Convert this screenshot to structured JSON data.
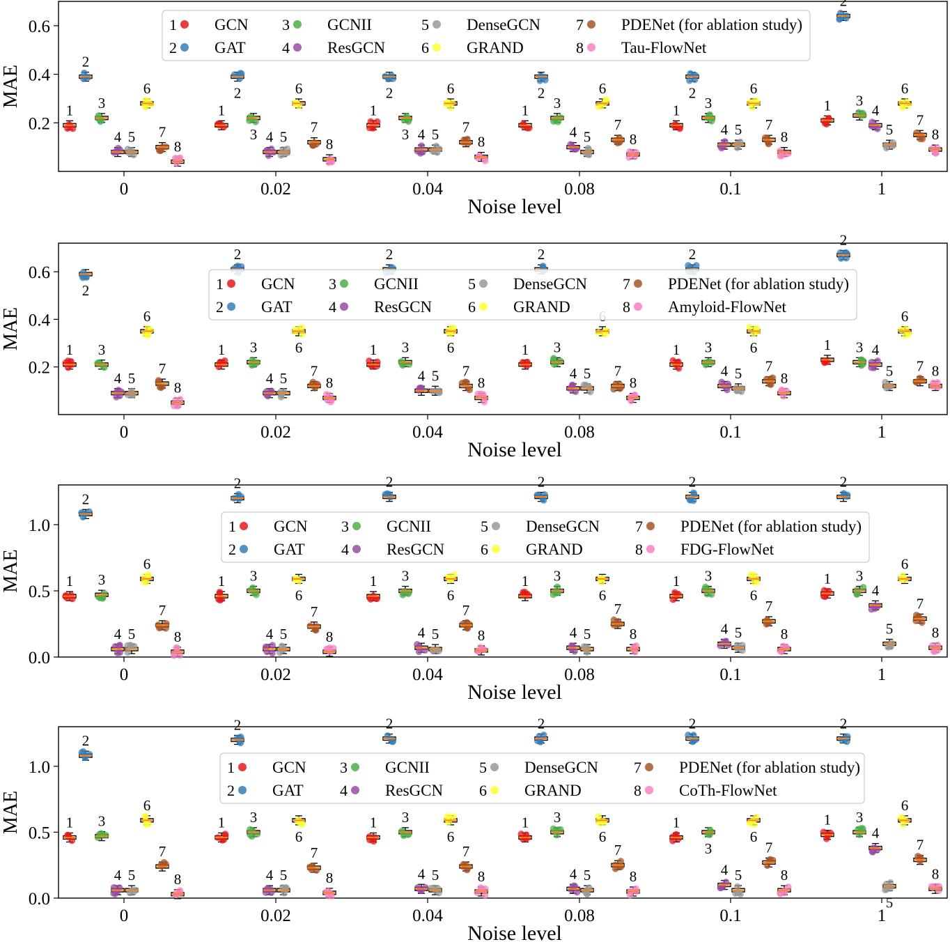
{
  "figure": {
    "xlabel": "Noise level",
    "ylabel": "MAE"
  },
  "colors": {
    "GCN": "#e41a1c",
    "GAT": "#377eb8",
    "GCNII": "#4daf4a",
    "ResGCN": "#984ea3",
    "DenseGCN": "#999999",
    "GRAND": "#ffff33",
    "PDENet": "#a65628",
    "FlowNet": "#f781bf",
    "median": "#ff7f0e"
  },
  "chart_data": [
    {
      "type": "box",
      "xlabel": "Noise level",
      "ylabel": "MAE",
      "categories": [
        "0",
        "0.02",
        "0.04",
        "0.08",
        "0.1",
        "1"
      ],
      "ylim": [
        0.0,
        0.7
      ],
      "yticks": [
        0.2,
        0.4,
        0.6
      ],
      "legend": [
        "GCN",
        "GAT",
        "GCNII",
        "ResGCN",
        "DenseGCN",
        "GRAND",
        "PDENet (for ablation study)",
        "Tau-FlowNet"
      ],
      "series": [
        {
          "num": "1",
          "name": "GCN",
          "values": [
            0.19,
            0.19,
            0.19,
            0.19,
            0.19,
            0.21
          ]
        },
        {
          "num": "2",
          "name": "GAT",
          "values": [
            0.39,
            0.39,
            0.39,
            0.39,
            0.39,
            0.64
          ]
        },
        {
          "num": "3",
          "name": "GCNII",
          "values": [
            0.22,
            0.22,
            0.22,
            0.22,
            0.22,
            0.23
          ]
        },
        {
          "num": "4",
          "name": "ResGCN",
          "values": [
            0.08,
            0.08,
            0.09,
            0.1,
            0.11,
            0.19
          ]
        },
        {
          "num": "5",
          "name": "DenseGCN",
          "values": [
            0.08,
            0.08,
            0.09,
            0.08,
            0.11,
            0.11
          ]
        },
        {
          "num": "6",
          "name": "GRAND",
          "values": [
            0.28,
            0.28,
            0.28,
            0.28,
            0.28,
            0.28
          ]
        },
        {
          "num": "7",
          "name": "PDENet (for ablation study)",
          "values": [
            0.1,
            0.12,
            0.12,
            0.13,
            0.13,
            0.15
          ]
        },
        {
          "num": "8",
          "name": "Tau-FlowNet",
          "values": [
            0.04,
            0.05,
            0.06,
            0.07,
            0.08,
            0.09
          ]
        }
      ]
    },
    {
      "type": "box",
      "xlabel": "Noise level",
      "ylabel": "MAE",
      "categories": [
        "0",
        "0.02",
        "0.04",
        "0.08",
        "0.1",
        "1"
      ],
      "ylim": [
        0.0,
        0.72
      ],
      "yticks": [
        0.2,
        0.4,
        0.6
      ],
      "legend": [
        "GCN",
        "GAT",
        "GCNII",
        "ResGCN",
        "DenseGCN",
        "GRAND",
        "PDENet (for ablation study)",
        "Amyloid-FlowNet"
      ],
      "series": [
        {
          "num": "1",
          "name": "GCN",
          "values": [
            0.21,
            0.21,
            0.21,
            0.21,
            0.21,
            0.23
          ]
        },
        {
          "num": "2",
          "name": "GAT",
          "values": [
            0.59,
            0.61,
            0.61,
            0.61,
            0.61,
            0.67
          ]
        },
        {
          "num": "3",
          "name": "GCNII",
          "values": [
            0.21,
            0.22,
            0.22,
            0.22,
            0.22,
            0.22
          ]
        },
        {
          "num": "4",
          "name": "ResGCN",
          "values": [
            0.09,
            0.09,
            0.1,
            0.11,
            0.12,
            0.21
          ]
        },
        {
          "num": "5",
          "name": "DenseGCN",
          "values": [
            0.09,
            0.09,
            0.1,
            0.11,
            0.11,
            0.12
          ]
        },
        {
          "num": "6",
          "name": "GRAND",
          "values": [
            0.35,
            0.35,
            0.35,
            0.35,
            0.35,
            0.35
          ]
        },
        {
          "num": "7",
          "name": "PDENet (for ablation study)",
          "values": [
            0.13,
            0.12,
            0.12,
            0.12,
            0.14,
            0.14
          ]
        },
        {
          "num": "8",
          "name": "Amyloid-FlowNet",
          "values": [
            0.05,
            0.07,
            0.07,
            0.07,
            0.09,
            0.12
          ]
        }
      ]
    },
    {
      "type": "box",
      "xlabel": "Noise level",
      "ylabel": "MAE",
      "categories": [
        "0",
        "0.02",
        "0.04",
        "0.08",
        "0.1",
        "1"
      ],
      "ylim": [
        0.0,
        1.3
      ],
      "yticks": [
        0.0,
        0.5,
        1.0
      ],
      "legend": [
        "GCN",
        "GAT",
        "GCNII",
        "ResGCN",
        "DenseGCN",
        "GRAND",
        "PDENet (for ablation study)",
        "FDG-FlowNet"
      ],
      "series": [
        {
          "num": "1",
          "name": "GCN",
          "values": [
            0.46,
            0.46,
            0.46,
            0.46,
            0.46,
            0.48
          ]
        },
        {
          "num": "2",
          "name": "GAT",
          "values": [
            1.08,
            1.2,
            1.21,
            1.21,
            1.21,
            1.21
          ]
        },
        {
          "num": "3",
          "name": "GCNII",
          "values": [
            0.47,
            0.5,
            0.5,
            0.5,
            0.5,
            0.5
          ]
        },
        {
          "num": "4",
          "name": "ResGCN",
          "values": [
            0.06,
            0.06,
            0.07,
            0.07,
            0.1,
            0.39
          ]
        },
        {
          "num": "5",
          "name": "DenseGCN",
          "values": [
            0.06,
            0.06,
            0.06,
            0.06,
            0.07,
            0.1
          ]
        },
        {
          "num": "6",
          "name": "GRAND",
          "values": [
            0.59,
            0.59,
            0.59,
            0.59,
            0.59,
            0.59
          ]
        },
        {
          "num": "7",
          "name": "PDENet (for ablation study)",
          "values": [
            0.24,
            0.23,
            0.24,
            0.25,
            0.27,
            0.29
          ]
        },
        {
          "num": "8",
          "name": "FDG-FlowNet",
          "values": [
            0.04,
            0.04,
            0.05,
            0.06,
            0.06,
            0.07
          ]
        }
      ]
    },
    {
      "type": "box",
      "xlabel": "Noise level",
      "ylabel": "MAE",
      "categories": [
        "0",
        "0.02",
        "0.04",
        "0.08",
        "0.1",
        "1"
      ],
      "ylim": [
        0.0,
        1.3
      ],
      "yticks": [
        0.0,
        0.5,
        1.0
      ],
      "legend": [
        "GCN",
        "GAT",
        "GCNII",
        "ResGCN",
        "DenseGCN",
        "GRAND",
        "PDENet (for ablation study)",
        "CoTh-FlowNet"
      ],
      "series": [
        {
          "num": "1",
          "name": "GCN",
          "values": [
            0.46,
            0.46,
            0.46,
            0.46,
            0.46,
            0.48
          ]
        },
        {
          "num": "2",
          "name": "GAT",
          "values": [
            1.08,
            1.2,
            1.21,
            1.21,
            1.21,
            1.21
          ]
        },
        {
          "num": "3",
          "name": "GCNII",
          "values": [
            0.47,
            0.5,
            0.5,
            0.5,
            0.5,
            0.5
          ]
        },
        {
          "num": "4",
          "name": "ResGCN",
          "values": [
            0.06,
            0.06,
            0.07,
            0.07,
            0.1,
            0.38
          ]
        },
        {
          "num": "5",
          "name": "DenseGCN",
          "values": [
            0.06,
            0.06,
            0.06,
            0.06,
            0.06,
            0.09
          ]
        },
        {
          "num": "6",
          "name": "GRAND",
          "values": [
            0.59,
            0.59,
            0.59,
            0.59,
            0.59,
            0.59
          ]
        },
        {
          "num": "7",
          "name": "PDENet (for ablation study)",
          "values": [
            0.24,
            0.23,
            0.24,
            0.25,
            0.27,
            0.29
          ]
        },
        {
          "num": "8",
          "name": "CoTh-FlowNet",
          "values": [
            0.03,
            0.04,
            0.05,
            0.05,
            0.06,
            0.07
          ]
        }
      ]
    }
  ]
}
